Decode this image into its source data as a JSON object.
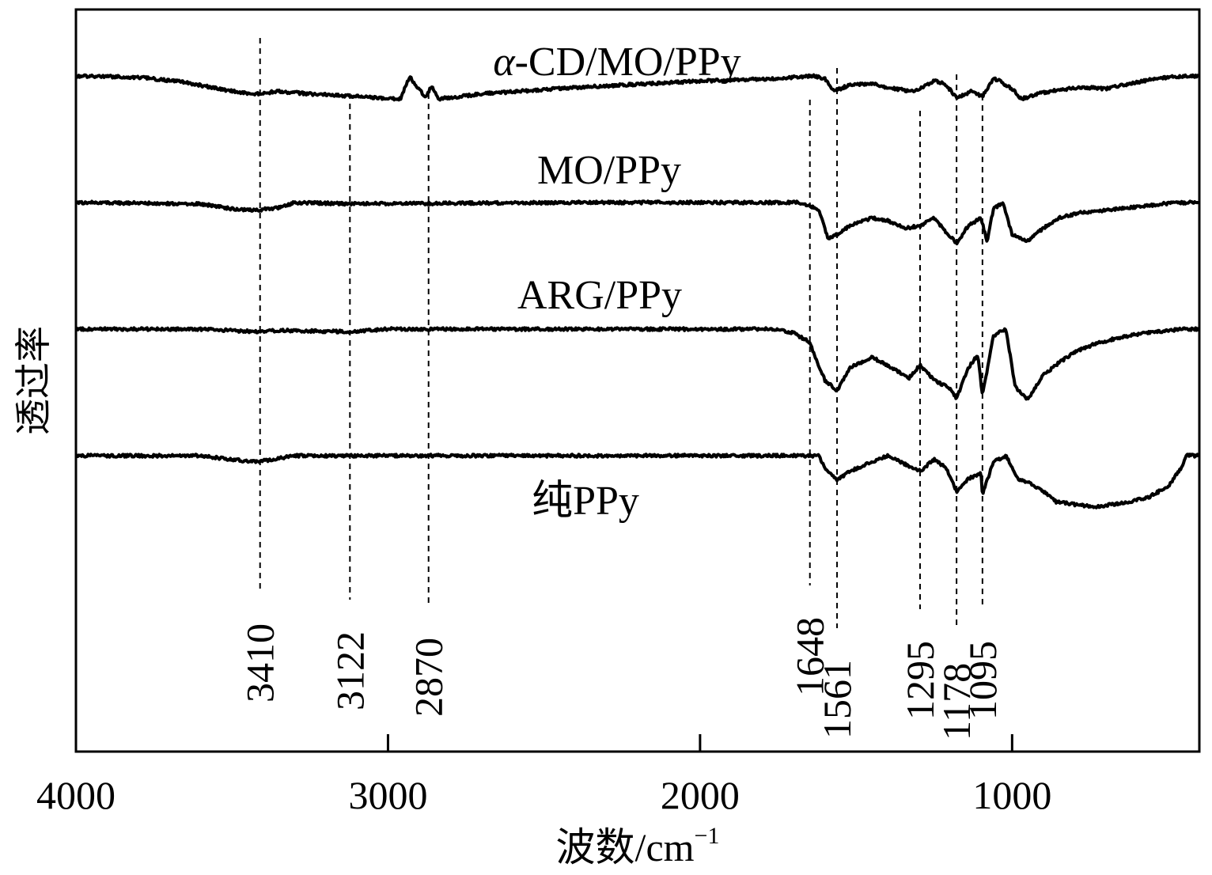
{
  "chart_data": {
    "type": "line",
    "xlabel": "波数/cm",
    "xlabel_sup": "−1",
    "ylabel": "透过率",
    "xlim": [
      4000,
      400
    ],
    "x_ticks": [
      "4000",
      "3000",
      "2000",
      "1000"
    ],
    "x_tick_values": [
      4000,
      3000,
      2000,
      1000
    ],
    "peaks": [
      {
        "label": "3410",
        "x": 3410
      },
      {
        "label": "3122",
        "x": 3122
      },
      {
        "label": "2870",
        "x": 2870
      },
      {
        "label": "1648",
        "x": 1648
      },
      {
        "label": "1561",
        "x": 1561
      },
      {
        "label": "1295",
        "x": 1295
      },
      {
        "label": "1178",
        "x": 1178
      },
      {
        "label": "1095",
        "x": 1095
      }
    ],
    "series": [
      {
        "name": "α-CD/MO/PPy",
        "name_italic": "α",
        "name_rest": "-CD/MO/PPy",
        "baseline": 0.0,
        "points": [
          [
            4000,
            0.0
          ],
          [
            3800,
            0.01
          ],
          [
            3650,
            0.05
          ],
          [
            3500,
            0.12
          ],
          [
            3420,
            0.14
          ],
          [
            3350,
            0.12
          ],
          [
            3250,
            0.14
          ],
          [
            3100,
            0.16
          ],
          [
            2960,
            0.18
          ],
          [
            2930,
            0.0
          ],
          [
            2910,
            0.08
          ],
          [
            2880,
            0.16
          ],
          [
            2860,
            0.08
          ],
          [
            2840,
            0.18
          ],
          [
            2700,
            0.14
          ],
          [
            2400,
            0.09
          ],
          [
            2000,
            0.04
          ],
          [
            1750,
            0.02
          ],
          [
            1640,
            0.0
          ],
          [
            1600,
            0.02
          ],
          [
            1580,
            0.1
          ],
          [
            1561,
            0.11
          ],
          [
            1520,
            0.07
          ],
          [
            1450,
            0.06
          ],
          [
            1400,
            0.09
          ],
          [
            1320,
            0.12
          ],
          [
            1295,
            0.1
          ],
          [
            1250,
            0.04
          ],
          [
            1215,
            0.06
          ],
          [
            1178,
            0.17
          ],
          [
            1130,
            0.12
          ],
          [
            1095,
            0.16
          ],
          [
            1060,
            0.02
          ],
          [
            1040,
            0.04
          ],
          [
            1000,
            0.1
          ],
          [
            970,
            0.18
          ],
          [
            920,
            0.14
          ],
          [
            880,
            0.12
          ],
          [
            820,
            0.1
          ],
          [
            760,
            0.09
          ],
          [
            700,
            0.1
          ],
          [
            620,
            0.06
          ],
          [
            560,
            0.03
          ],
          [
            500,
            0.01
          ],
          [
            440,
            0.0
          ]
        ]
      },
      {
        "name": "MO/PPy",
        "baseline": 1.0,
        "points": [
          [
            4000,
            0.0
          ],
          [
            3600,
            0.01
          ],
          [
            3500,
            0.05
          ],
          [
            3420,
            0.06
          ],
          [
            3350,
            0.04
          ],
          [
            3300,
            0.0
          ],
          [
            3122,
            0.01
          ],
          [
            2400,
            0.0
          ],
          [
            1750,
            0.0
          ],
          [
            1680,
            0.0
          ],
          [
            1620,
            0.05
          ],
          [
            1590,
            0.28
          ],
          [
            1561,
            0.25
          ],
          [
            1520,
            0.18
          ],
          [
            1450,
            0.12
          ],
          [
            1400,
            0.14
          ],
          [
            1340,
            0.2
          ],
          [
            1295,
            0.18
          ],
          [
            1250,
            0.12
          ],
          [
            1215,
            0.22
          ],
          [
            1178,
            0.32
          ],
          [
            1140,
            0.18
          ],
          [
            1100,
            0.12
          ],
          [
            1080,
            0.3
          ],
          [
            1060,
            0.05
          ],
          [
            1030,
            0.0
          ],
          [
            1000,
            0.25
          ],
          [
            950,
            0.3
          ],
          [
            900,
            0.2
          ],
          [
            850,
            0.12
          ],
          [
            780,
            0.08
          ],
          [
            700,
            0.06
          ],
          [
            620,
            0.04
          ],
          [
            520,
            0.01
          ],
          [
            440,
            0.0
          ]
        ]
      },
      {
        "name": "ARG/PPy",
        "baseline": 2.0,
        "points": [
          [
            4000,
            0.0
          ],
          [
            3600,
            0.0
          ],
          [
            3420,
            0.02
          ],
          [
            3350,
            0.01
          ],
          [
            3122,
            0.02
          ],
          [
            3000,
            0.0
          ],
          [
            2400,
            0.0
          ],
          [
            1750,
            0.0
          ],
          [
            1700,
            0.03
          ],
          [
            1650,
            0.1
          ],
          [
            1600,
            0.4
          ],
          [
            1561,
            0.48
          ],
          [
            1520,
            0.3
          ],
          [
            1450,
            0.22
          ],
          [
            1400,
            0.28
          ],
          [
            1330,
            0.38
          ],
          [
            1295,
            0.28
          ],
          [
            1250,
            0.4
          ],
          [
            1200,
            0.46
          ],
          [
            1178,
            0.54
          ],
          [
            1140,
            0.3
          ],
          [
            1110,
            0.2
          ],
          [
            1095,
            0.52
          ],
          [
            1060,
            0.05
          ],
          [
            1020,
            0.0
          ],
          [
            990,
            0.45
          ],
          [
            950,
            0.55
          ],
          [
            900,
            0.36
          ],
          [
            860,
            0.28
          ],
          [
            800,
            0.18
          ],
          [
            740,
            0.12
          ],
          [
            680,
            0.08
          ],
          [
            600,
            0.04
          ],
          [
            500,
            0.01
          ],
          [
            440,
            0.0
          ]
        ]
      },
      {
        "name": "纯PPy",
        "baseline": 3.0,
        "points": [
          [
            4000,
            0.0
          ],
          [
            3600,
            0.0
          ],
          [
            3500,
            0.03
          ],
          [
            3420,
            0.05
          ],
          [
            3350,
            0.02
          ],
          [
            3300,
            0.0
          ],
          [
            2400,
            0.0
          ],
          [
            1750,
            0.0
          ],
          [
            1620,
            0.0
          ],
          [
            1600,
            0.1
          ],
          [
            1561,
            0.19
          ],
          [
            1520,
            0.12
          ],
          [
            1450,
            0.05
          ],
          [
            1400,
            0.0
          ],
          [
            1330,
            0.08
          ],
          [
            1295,
            0.12
          ],
          [
            1250,
            0.03
          ],
          [
            1210,
            0.1
          ],
          [
            1178,
            0.28
          ],
          [
            1140,
            0.18
          ],
          [
            1100,
            0.14
          ],
          [
            1095,
            0.3
          ],
          [
            1060,
            0.05
          ],
          [
            1020,
            0.0
          ],
          [
            980,
            0.18
          ],
          [
            940,
            0.22
          ],
          [
            900,
            0.28
          ],
          [
            860,
            0.36
          ],
          [
            800,
            0.38
          ],
          [
            740,
            0.4
          ],
          [
            680,
            0.38
          ],
          [
            620,
            0.36
          ],
          [
            560,
            0.32
          ],
          [
            500,
            0.24
          ],
          [
            460,
            0.1
          ],
          [
            440,
            0.0
          ]
        ]
      }
    ]
  }
}
